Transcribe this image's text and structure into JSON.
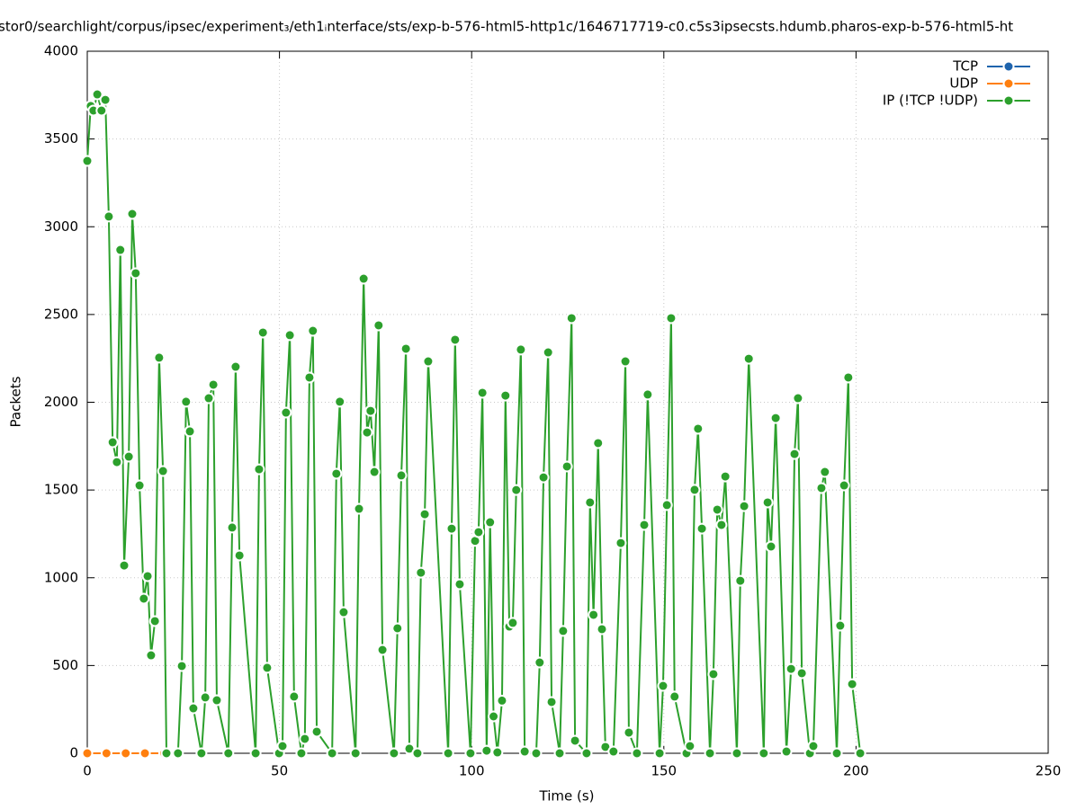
{
  "chart_data": {
    "type": "line",
    "title": "stor0/searchlight/corpus/ipsec/experiment₃/eth1ᵢnterface/sts/exp-b-576-html5-http1c/1646717719-c0.c5s3ipsecsts.hdumb.pharos-exp-b-576-html5-ht",
    "x_label": "Time (s)",
    "y_label": "Packets",
    "xlim": [
      0,
      250
    ],
    "xticks": [
      0,
      50,
      100,
      150,
      200,
      250
    ],
    "ylim": [
      0,
      4000
    ],
    "yticks": [
      0,
      500,
      1000,
      1500,
      2000,
      2500,
      3000,
      3500,
      4000
    ],
    "grid": true,
    "legend": "top-right",
    "series": [
      {
        "name": "TCP",
        "color": "#1f64ad",
        "x": [
          0,
          5,
          10,
          15,
          20
        ],
        "values": [
          0,
          0,
          0,
          0,
          0
        ]
      },
      {
        "name": "UDP",
        "color": "#ff7f0e",
        "x": [
          0,
          5,
          10,
          15,
          20
        ],
        "values": [
          0,
          0,
          0,
          0,
          0
        ]
      },
      {
        "name": "IP (!TCP  !UDP)",
        "color": "#2ca02c",
        "x": [
          0,
          0.9,
          1.6,
          2.6,
          3.7,
          4.7,
          5.6,
          6.6,
          7.7,
          8.6,
          9.6,
          10.8,
          11.7,
          12.6,
          13.6,
          14.7,
          15.7,
          16.6,
          17.6,
          18.7,
          19.7,
          20.6,
          23.6,
          24.6,
          25.7,
          26.7,
          27.6,
          29.7,
          30.7,
          31.6,
          32.8,
          33.7,
          36.7,
          37.7,
          38.6,
          39.6,
          43.8,
          44.7,
          45.7,
          46.8,
          49.9,
          50.8,
          51.7,
          52.7,
          53.8,
          55.7,
          56.6,
          57.8,
          58.7,
          59.7,
          63.7,
          64.8,
          65.7,
          66.7,
          69.8,
          70.7,
          71.9,
          72.8,
          73.7,
          74.7,
          75.8,
          76.8,
          79.8,
          80.7,
          81.7,
          82.9,
          83.8,
          85.9,
          86.8,
          87.8,
          88.7,
          93.9,
          94.8,
          95.7,
          96.9,
          99.7,
          100.9,
          101.8,
          102.8,
          103.9,
          104.8,
          105.7,
          106.7,
          107.9,
          108.8,
          109.8,
          110.7,
          111.6,
          112.8,
          113.8,
          116.8,
          117.7,
          118.7,
          119.9,
          120.8,
          122.9,
          123.8,
          124.8,
          126,
          126.9,
          129.9,
          130.8,
          131.7,
          132.9,
          133.9,
          134.8,
          136.9,
          138.8,
          140,
          140.9,
          143,
          144.9,
          145.8,
          148.9,
          149.8,
          150.8,
          151.9,
          152.8,
          155.9,
          156.8,
          158,
          158.9,
          159.9,
          162,
          162.9,
          163.9,
          165,
          166,
          169,
          169.9,
          170.9,
          172.1,
          176,
          177,
          177.9,
          179.1,
          181.9,
          183.1,
          184,
          184.9,
          185.9,
          188,
          188.9,
          191,
          191.9,
          195,
          195.9,
          196.9,
          198,
          199,
          201.1
        ],
        "values": [
          3375,
          3688,
          3662,
          3754,
          3662,
          3723,
          3058,
          1772,
          1659,
          2868,
          1070,
          1690,
          3073,
          2735,
          1526,
          881,
          1009,
          558,
          753,
          2254,
          1608,
          0,
          0,
          497,
          2003,
          1834,
          256,
          0,
          318,
          2023,
          2100,
          302,
          0,
          1286,
          2202,
          1127,
          0,
          1618,
          2397,
          487,
          0,
          41,
          1941,
          2382,
          323,
          0,
          82,
          2141,
          2407,
          123,
          0,
          1593,
          2003,
          804,
          0,
          1393,
          2704,
          1828,
          1951,
          1603,
          2438,
          589,
          0,
          712,
          1583,
          2305,
          26,
          0,
          1029,
          1362,
          2233,
          0,
          1280,
          2356,
          963,
          0,
          1210,
          1260,
          2054,
          15,
          1316,
          210,
          5,
          300,
          2038,
          722,
          743,
          1500,
          2300,
          10,
          0,
          517,
          1572,
          2284,
          292,
          0,
          697,
          1634,
          2479,
          72,
          0,
          1429,
          789,
          1767,
          707,
          36,
          10,
          1198,
          2233,
          118,
          0,
          1301,
          2044,
          0,
          384,
          1414,
          2479,
          323,
          0,
          41,
          1501,
          1849,
          1280,
          0,
          451,
          1388,
          1301,
          1577,
          0,
          983,
          1408,
          2248,
          0,
          1429,
          1178,
          1910,
          10,
          481,
          1705,
          2023,
          456,
          0,
          41,
          1511,
          1603,
          0,
          727,
          1526,
          2141,
          394,
          0
        ]
      }
    ]
  }
}
